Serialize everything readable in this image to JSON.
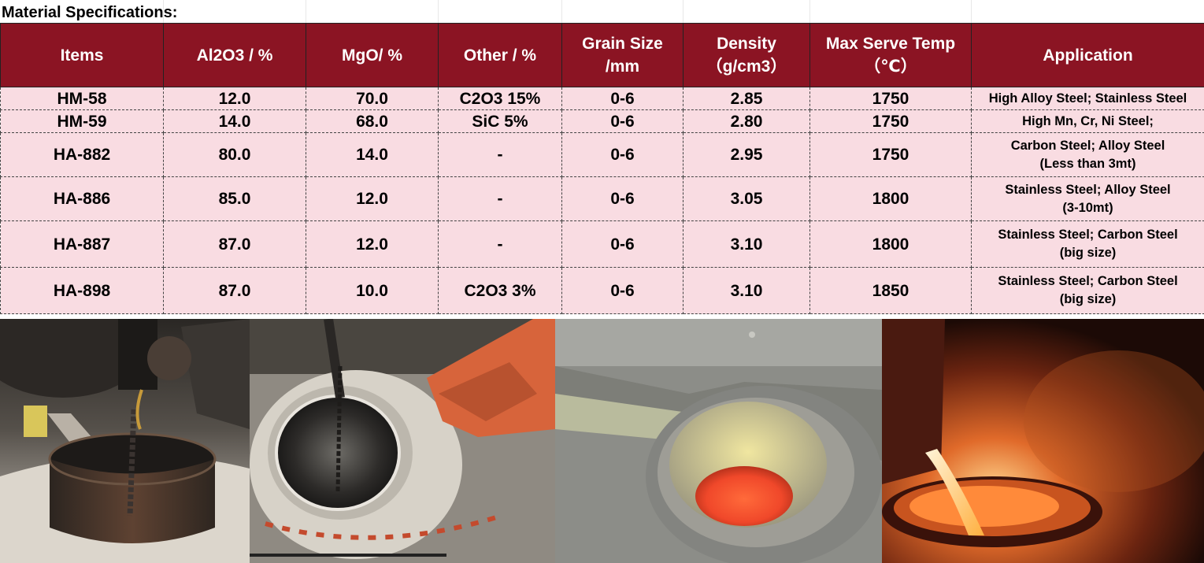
{
  "heading": "Material Specifications:",
  "table": {
    "headers": [
      {
        "line1": "Items",
        "line2": ""
      },
      {
        "line1": "Al2O3 / %",
        "line2": ""
      },
      {
        "line1": "MgO/ %",
        "line2": ""
      },
      {
        "line1": "Other / %",
        "line2": ""
      },
      {
        "line1": "Grain Size",
        "line2": "/mm"
      },
      {
        "line1": "Density",
        "line2": "（g/cm3）"
      },
      {
        "line1": "Max Serve Temp",
        "line2": "（℃）"
      },
      {
        "line1": "Application",
        "line2": ""
      }
    ],
    "rows": [
      {
        "item": "HM-58",
        "al2o3": "12.0",
        "mgo": "70.0",
        "other": "C2O3 15%",
        "grain": "0-6",
        "density": "2.85",
        "temp": "1750",
        "app1": "High Alloy Steel; Stainless Steel",
        "app2": ""
      },
      {
        "item": "HM-59",
        "al2o3": "14.0",
        "mgo": "68.0",
        "other": "SiC 5%",
        "grain": "0-6",
        "density": "2.80",
        "temp": "1750",
        "app1": "High Mn, Cr, Ni Steel;",
        "app2": ""
      },
      {
        "item": "HA-882",
        "al2o3": "80.0",
        "mgo": "14.0",
        "other": "-",
        "grain": "0-6",
        "density": "2.95",
        "temp": "1750",
        "app1": "Carbon Steel; Alloy Steel",
        "app2": "(Less than 3mt)"
      },
      {
        "item": "HA-886",
        "al2o3": "85.0",
        "mgo": "12.0",
        "other": "-",
        "grain": "0-6",
        "density": "3.05",
        "temp": "1800",
        "app1": "Stainless Steel; Alloy Steel",
        "app2": "(3-10mt)"
      },
      {
        "item": "HA-887",
        "al2o3": "87.0",
        "mgo": "12.0",
        "other": "-",
        "grain": "0-6",
        "density": "3.10",
        "temp": "1800",
        "app1": "Stainless Steel; Carbon Steel",
        "app2": "(big size)"
      },
      {
        "item": "HA-898",
        "al2o3": "87.0",
        "mgo": "10.0",
        "other": "C2O3 3%",
        "grain": "0-6",
        "density": "3.10",
        "temp": "1850",
        "app1": "Stainless Steel; Carbon Steel",
        "app2": "(big size)"
      }
    ]
  },
  "colors": {
    "header_bg": "#8b1423",
    "row_bg": "#f9dce2"
  }
}
